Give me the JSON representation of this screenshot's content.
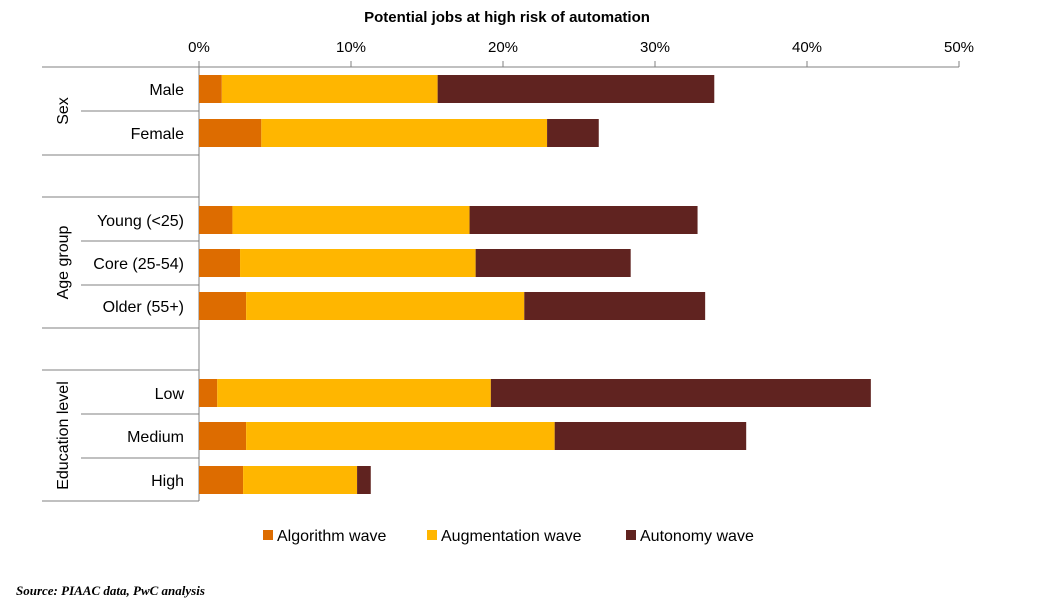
{
  "chart_data": {
    "type": "bar",
    "orientation": "horizontal",
    "stacked": true,
    "title": "Potential jobs at high risk of automation",
    "x_ticks": [
      "0%",
      "10%",
      "20%",
      "30%",
      "40%",
      "50%"
    ],
    "xlim": [
      0,
      50
    ],
    "tick_position": "top",
    "grid": false,
    "legend_position": "bottom",
    "groups": [
      {
        "label": "Sex",
        "categories": [
          "Male",
          "Female"
        ]
      },
      {
        "label": "Age group",
        "categories": [
          "Young (<25)",
          "Core (25-54)",
          "Older (55+)"
        ]
      },
      {
        "label": "Education level",
        "categories": [
          "Low",
          "Medium",
          "High"
        ]
      }
    ],
    "categories": [
      "Male",
      "Female",
      "Young (<25)",
      "Core (25-54)",
      "Older (55+)",
      "Low",
      "Medium",
      "High"
    ],
    "series": [
      {
        "name": "Algorithm wave",
        "color": "#dd6c00",
        "values": [
          1.5,
          4.1,
          2.2,
          2.7,
          3.1,
          1.2,
          3.1,
          2.9
        ]
      },
      {
        "name": "Augmentation wave",
        "color": "#ffb600",
        "values": [
          14.2,
          18.8,
          15.6,
          15.5,
          18.3,
          18.0,
          20.3,
          7.5
        ]
      },
      {
        "name": "Autonomy wave",
        "color": "#602320",
        "values": [
          18.2,
          3.4,
          15.0,
          10.2,
          11.9,
          25.0,
          12.6,
          0.9
        ]
      }
    ]
  },
  "source": "Source: PIAAC data, PwC analysis"
}
